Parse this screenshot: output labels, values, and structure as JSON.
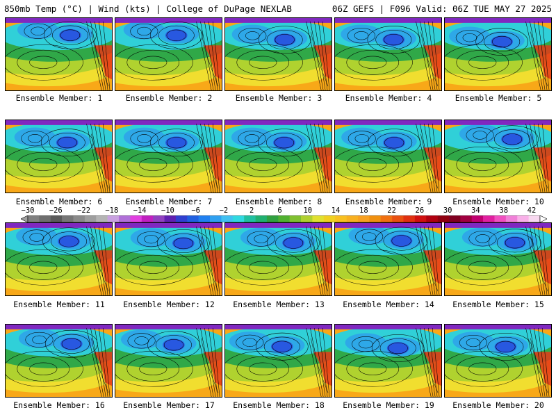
{
  "header": {
    "left": "850mb Temp (°C) | Wind (kts) | College of DuPage NEXLAB",
    "right": "06Z GEFS | F096 Valid: 06Z TUE MAY 27 2025"
  },
  "panels": [
    {
      "caption": "Ensemble Member: 1"
    },
    {
      "caption": "Ensemble Member: 2"
    },
    {
      "caption": "Ensemble Member: 3"
    },
    {
      "caption": "Ensemble Member: 4"
    },
    {
      "caption": "Ensemble Member: 5"
    },
    {
      "caption": "Ensemble Member: 6"
    },
    {
      "caption": "Ensemble Member: 7"
    },
    {
      "caption": "Ensemble Member: 8"
    },
    {
      "caption": "Ensemble Member: 9"
    },
    {
      "caption": "Ensemble Member: 10"
    },
    {
      "caption": "Ensemble Member: 11"
    },
    {
      "caption": "Ensemble Member: 12"
    },
    {
      "caption": "Ensemble Member: 13"
    },
    {
      "caption": "Ensemble Member: 14"
    },
    {
      "caption": "Ensemble Member: 15"
    },
    {
      "caption": "Ensemble Member: 16"
    },
    {
      "caption": "Ensemble Member: 17"
    },
    {
      "caption": "Ensemble Member: 18"
    },
    {
      "caption": "Ensemble Member: 19"
    },
    {
      "caption": "Ensemble Member: 20"
    }
  ],
  "colorbar": {
    "tick_labels": [
      "−30",
      "−26",
      "−22",
      "−18",
      "−14",
      "−10",
      "−6",
      "−2",
      "2",
      "6",
      "10",
      "14",
      "18",
      "22",
      "26",
      "30",
      "34",
      "38",
      "42"
    ],
    "colors": [
      "#808080",
      "#6e6e6e",
      "#5a5a5a",
      "#767676",
      "#8a8a8a",
      "#9e9e9e",
      "#b4b4b4",
      "#c8a0e0",
      "#b070d8",
      "#e040e0",
      "#c020c0",
      "#9040c0",
      "#6020b0",
      "#3040d0",
      "#2060e0",
      "#2080f0",
      "#30a0f0",
      "#40c0f0",
      "#30d8e0",
      "#20c0a0",
      "#20b070",
      "#30a040",
      "#50b030",
      "#80c030",
      "#b0d030",
      "#e0e030",
      "#f0d020",
      "#f8c020",
      "#f8b020",
      "#f8a020",
      "#f09010",
      "#f07010",
      "#e85010",
      "#e03010",
      "#d01010",
      "#b00010",
      "#900010",
      "#800020",
      "#a00040",
      "#c00070",
      "#e020a0",
      "#f050c0",
      "#f080d8",
      "#f8b0e8",
      "#f8d8f0"
    ]
  },
  "map_colors": {
    "purple": "#8028c0",
    "blue": "#2858e0",
    "light_blue": "#2ea8e8",
    "cyan": "#30d0d8",
    "green": "#30a848",
    "yellow_green": "#a8d030",
    "yellow": "#f0e030",
    "orange": "#f8a818",
    "red": "#e83818",
    "contour": "#000000"
  }
}
